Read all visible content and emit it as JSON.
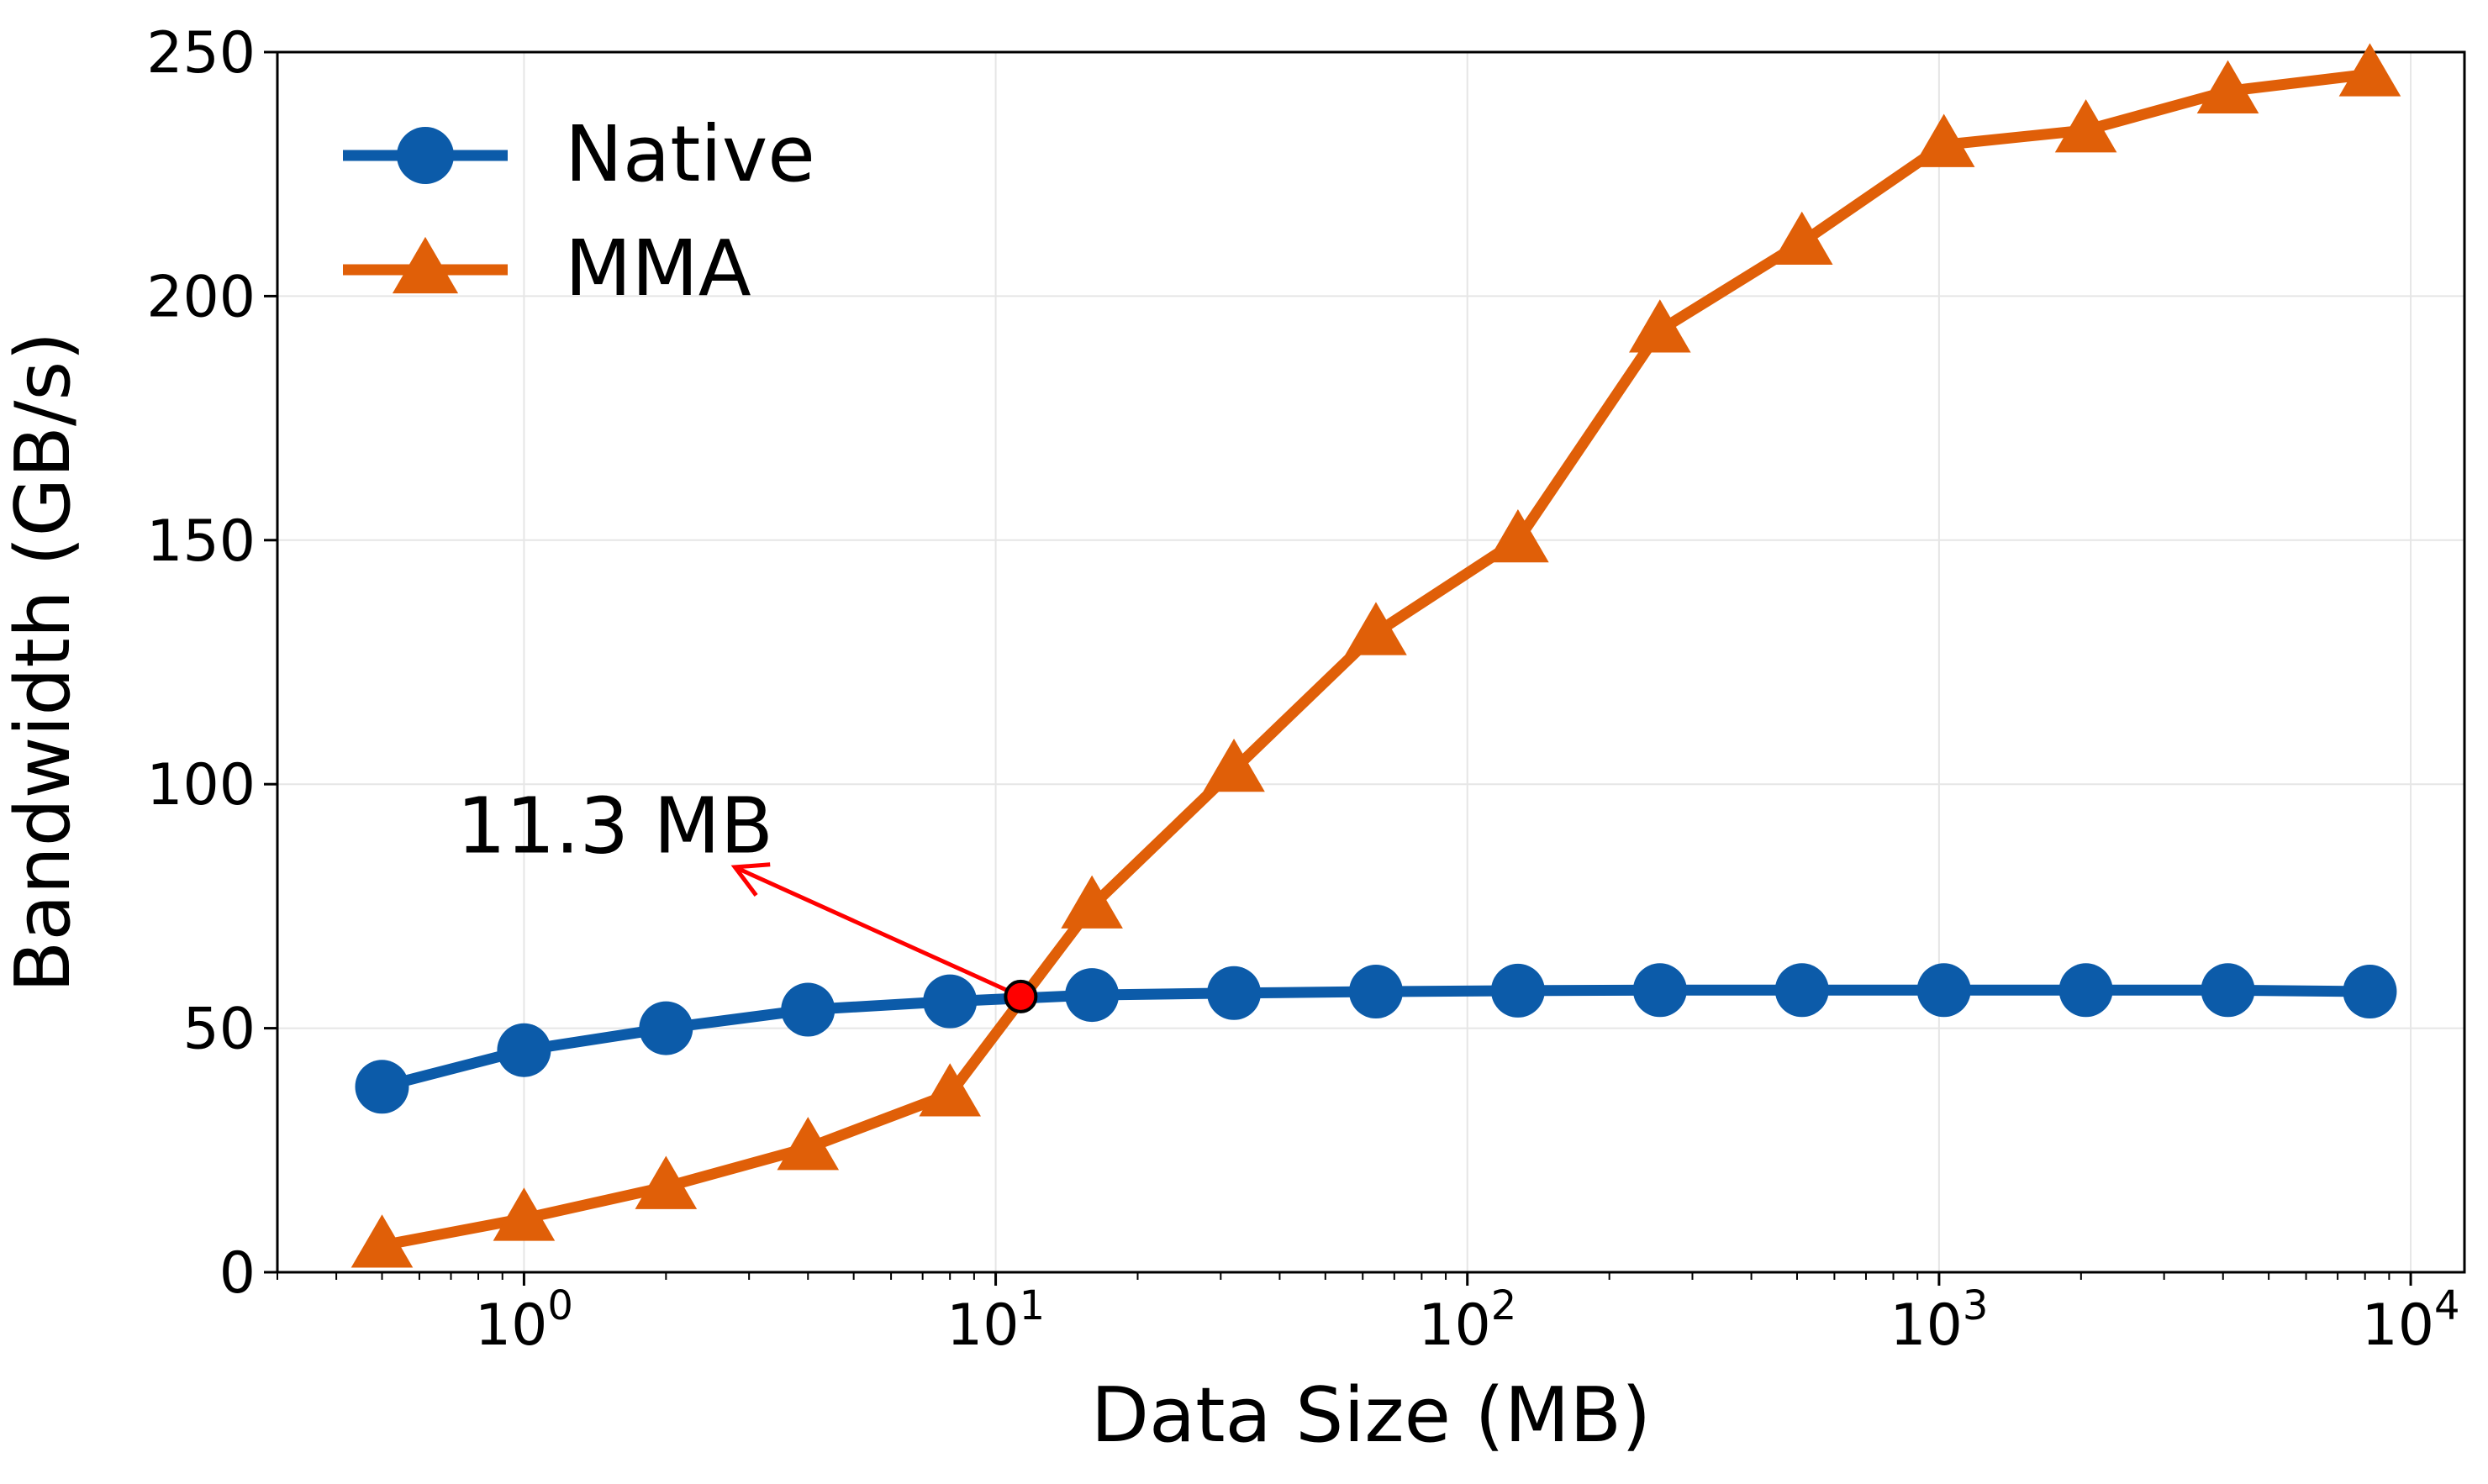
{
  "chart_data": {
    "type": "line",
    "title": "",
    "xlabel": "Data Size (MB)",
    "ylabel": "Bandwidth (GB/s)",
    "x_scale": "log",
    "xlim": [
      0.3,
      13000
    ],
    "ylim": [
      0,
      250
    ],
    "x_ticks": [
      {
        "base": "10",
        "exp": "0",
        "value": 1
      },
      {
        "base": "10",
        "exp": "1",
        "value": 10
      },
      {
        "base": "10",
        "exp": "2",
        "value": 100
      },
      {
        "base": "10",
        "exp": "3",
        "value": 1000
      },
      {
        "base": "10",
        "exp": "4",
        "value": 10000
      }
    ],
    "y_ticks": [
      0,
      50,
      100,
      150,
      200,
      250
    ],
    "grid": true,
    "legend_position": "top-left",
    "x": [
      0.5,
      1,
      2,
      4,
      8,
      16,
      32,
      64,
      128,
      256,
      512,
      1024,
      2048,
      4096,
      8192
    ],
    "series": [
      {
        "name": "Native",
        "color": "#0c5ba9",
        "marker": "circle",
        "values": [
          38,
          45.5,
          50,
          53.8,
          55.5,
          56.8,
          57.2,
          57.5,
          57.7,
          57.8,
          57.8,
          57.8,
          57.8,
          57.8,
          57.5
        ]
      },
      {
        "name": "MMA",
        "color": "#e05f08",
        "marker": "triangle",
        "values": [
          5.5,
          11,
          17.5,
          25.5,
          36.5,
          75,
          103,
          131,
          150,
          193,
          211,
          231,
          234,
          242,
          245.5
        ]
      }
    ],
    "annotation": {
      "text": "11.3 MB",
      "point": [
        11.3,
        56.5
      ],
      "text_position": [
        0.72,
        86
      ],
      "arrow_tip": [
        2.8,
        83
      ],
      "color": "#ff0000",
      "marker_color": "#ff0000"
    }
  }
}
